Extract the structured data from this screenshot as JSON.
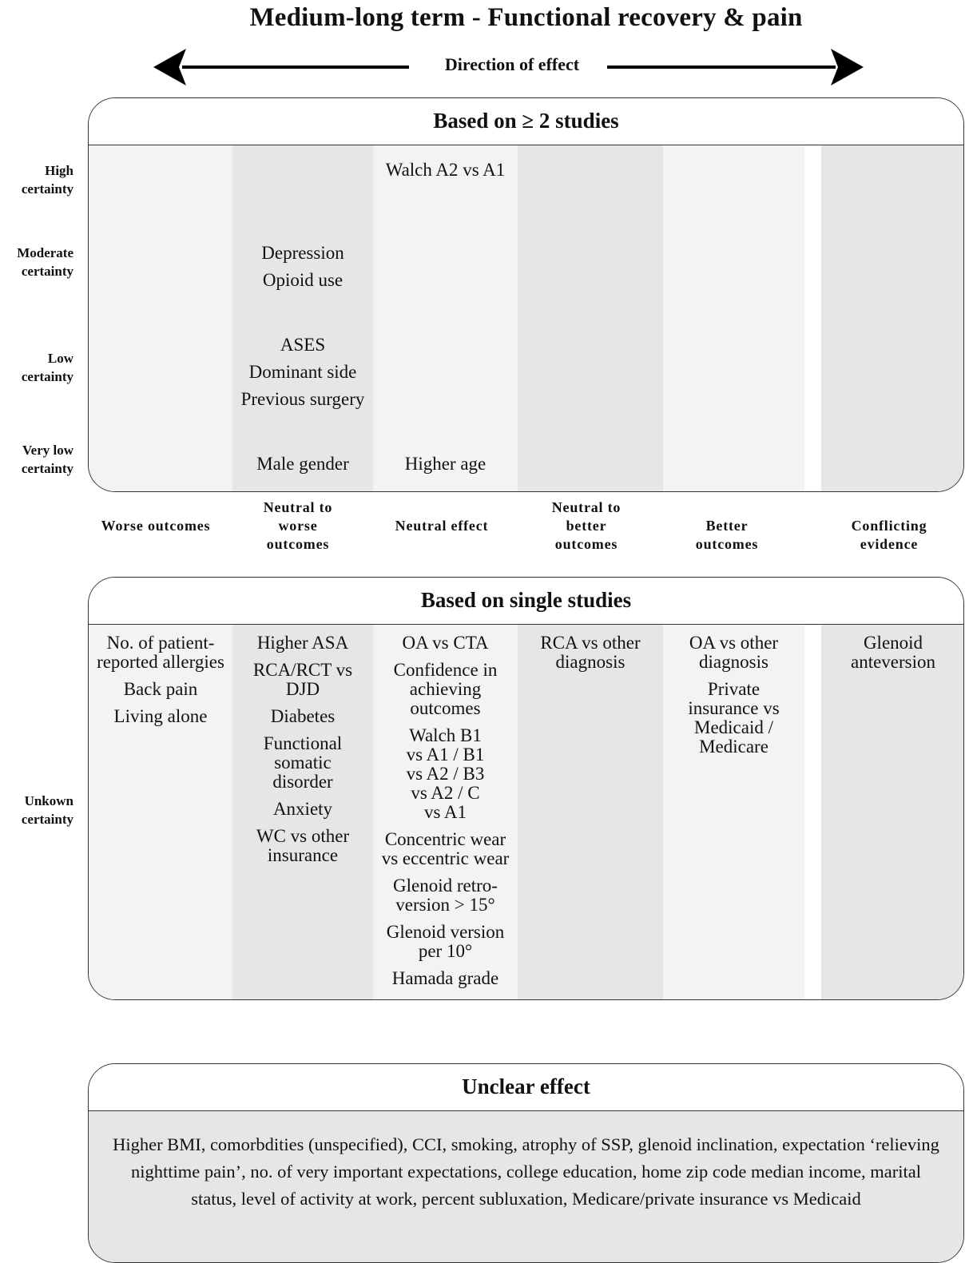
{
  "title": "Medium-long term - Functional recovery & pain",
  "direction_label": "Direction of effect",
  "panel_multi": {
    "heading": "Based on ≥ 2 studies",
    "certainty_levels": [
      "High certainty",
      "Moderate certainty",
      "Low certainty",
      "Very low certainty"
    ],
    "neutral_to_worse": {
      "moderate": [
        "Depression",
        "Opioid use"
      ],
      "low": [
        "ASES",
        "Dominant side",
        "Previous surgery"
      ],
      "very_low": [
        "Male gender"
      ]
    },
    "neutral_effect": {
      "high": [
        "Walch A2 vs A1"
      ],
      "very_low": [
        "Higher age"
      ]
    }
  },
  "effect_categories": [
    "Worse outcomes",
    "Neutral to worse outcomes",
    "Neutral effect",
    "Neutral to better outcomes",
    "Better outcomes",
    "Conflicting evidence"
  ],
  "panel_single": {
    "heading": "Based on single studies",
    "certainty_label": "Unkown certainty",
    "columns": [
      [
        "No. of patient-reported allergies",
        "Back pain",
        "Living alone"
      ],
      [
        "Higher ASA",
        "RCA/RCT vs DJD",
        "Diabetes",
        "Functional somatic disorder",
        "Anxiety",
        "WC vs other insurance"
      ],
      [
        "OA vs CTA",
        "Confidence in achieving outcomes",
        "Walch B1 vs A1 / B1 vs A2 / B3 vs A2 / C vs A1",
        "Concentric wear vs eccentric wear",
        "Glenoid retro-version > 15°",
        "Glenoid version per 10°",
        "Hamada grade"
      ],
      [
        "RCA vs other diagnosis"
      ],
      [
        "OA vs other diagnosis",
        "Private insurance vs Medicaid / Medicare"
      ],
      [
        "Glenoid anteversion"
      ]
    ]
  },
  "panel_unclear": {
    "heading": "Unclear effect",
    "text": "Higher BMI, comorbdities (unspecified), CCI, smoking, atrophy of SSP, glenoid inclination, expectation ‘relieving nighttime pain’, no. of very important expectations, college education, home zip code median income, marital status, level of activity at work, percent subluxation, Medicare/private insurance vs Medicaid"
  }
}
